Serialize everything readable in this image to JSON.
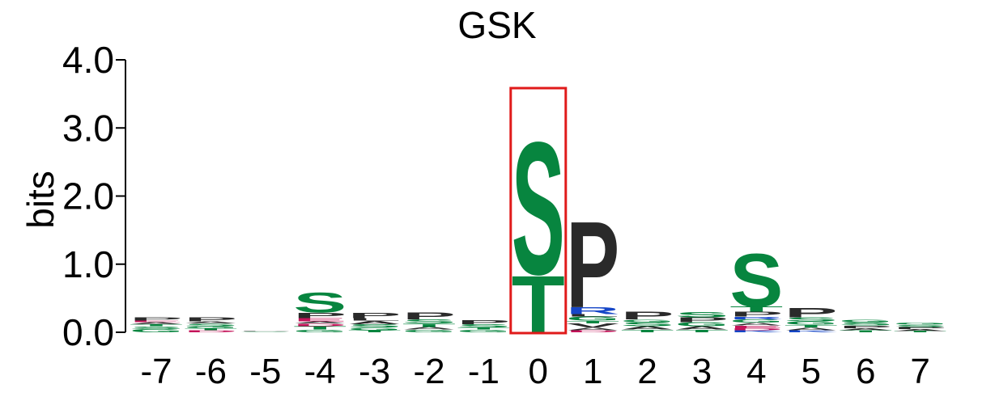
{
  "colors": {
    "S": "#07853f",
    "T": "#07853f",
    "G": "#07853f",
    "P": "#2a2a2a",
    "A": "#2a2a2a",
    "L": "#2a2a2a",
    "V": "#2a2a2a",
    "I": "#2a2a2a",
    "R": "#1546c7",
    "K": "#1546c7",
    "D": "#c4145a",
    "E": "#c4145a",
    "Q": "#7a2a7a",
    "N": "#07853f",
    "highlight": "#e01a1a",
    "axis": "#000000"
  },
  "chart_data": {
    "type": "sequence-logo",
    "title": "GSK",
    "ylabel": "bits",
    "xlabel": "",
    "ylim": [
      0,
      4
    ],
    "y_ticks": [
      "0.0",
      "1.0",
      "2.0",
      "3.0",
      "4.0"
    ],
    "y_tick_values": [
      0,
      1,
      2,
      3,
      4
    ],
    "positions": [
      "-7",
      "-6",
      "-5",
      "-4",
      "-3",
      "-2",
      "-1",
      "0",
      "1",
      "2",
      "3",
      "4",
      "5",
      "6",
      "7"
    ],
    "highlight_position": "0",
    "stacks": [
      {
        "position": "-7",
        "letters": [
          [
            "G",
            0.05
          ],
          [
            "S",
            0.04
          ],
          [
            "T",
            0.03
          ],
          [
            "A",
            0.03
          ],
          [
            "E",
            0.02
          ],
          [
            "P",
            0.05
          ]
        ]
      },
      {
        "position": "-6",
        "letters": [
          [
            "D",
            0.03
          ],
          [
            "T",
            0.03
          ],
          [
            "G",
            0.03
          ],
          [
            "S",
            0.04
          ],
          [
            "A",
            0.03
          ],
          [
            "P",
            0.06
          ]
        ]
      },
      {
        "position": "-5",
        "letters": [
          [
            "S",
            0.01
          ],
          [
            "P",
            0.01
          ]
        ]
      },
      {
        "position": "-4",
        "letters": [
          [
            "G",
            0.04
          ],
          [
            "T",
            0.05
          ],
          [
            "D",
            0.04
          ],
          [
            "A",
            0.03
          ],
          [
            "E",
            0.05
          ],
          [
            "P",
            0.08
          ],
          [
            "S",
            0.3
          ]
        ]
      },
      {
        "position": "-3",
        "letters": [
          [
            "T",
            0.03
          ],
          [
            "G",
            0.04
          ],
          [
            "S",
            0.05
          ],
          [
            "A",
            0.05
          ],
          [
            "L",
            0.04
          ],
          [
            "P",
            0.08
          ]
        ]
      },
      {
        "position": "-2",
        "letters": [
          [
            "G",
            0.04
          ],
          [
            "A",
            0.04
          ],
          [
            "T",
            0.05
          ],
          [
            "S",
            0.06
          ],
          [
            "P",
            0.1
          ]
        ]
      },
      {
        "position": "-1",
        "letters": [
          [
            "G",
            0.04
          ],
          [
            "T",
            0.03
          ],
          [
            "S",
            0.05
          ],
          [
            "P",
            0.06
          ]
        ]
      },
      {
        "position": "0",
        "letters": [
          [
            "T",
            0.86
          ],
          [
            "S",
            2.0
          ]
        ]
      },
      {
        "position": "1",
        "letters": [
          [
            "D",
            0.03
          ],
          [
            "A",
            0.04
          ],
          [
            "V",
            0.06
          ],
          [
            "T",
            0.04
          ],
          [
            "G",
            0.06
          ],
          [
            "L",
            0.04
          ],
          [
            "R",
            0.1
          ],
          [
            "P",
            1.3
          ]
        ]
      },
      {
        "position": "2",
        "letters": [
          [
            "T",
            0.04
          ],
          [
            "A",
            0.05
          ],
          [
            "S",
            0.06
          ],
          [
            "G",
            0.04
          ],
          [
            "P",
            0.12
          ]
        ]
      },
      {
        "position": "3",
        "letters": [
          [
            "T",
            0.04
          ],
          [
            "A",
            0.05
          ],
          [
            "G",
            0.06
          ],
          [
            "P",
            0.07
          ],
          [
            "S",
            0.08
          ]
        ]
      },
      {
        "position": "4",
        "letters": [
          [
            "K",
            0.03
          ],
          [
            "D",
            0.03
          ],
          [
            "E",
            0.04
          ],
          [
            "A",
            0.04
          ],
          [
            "G",
            0.05
          ],
          [
            "R",
            0.04
          ],
          [
            "P",
            0.07
          ],
          [
            "T",
            0.08
          ],
          [
            "S",
            0.8
          ]
        ]
      },
      {
        "position": "5",
        "letters": [
          [
            "K",
            0.03
          ],
          [
            "A",
            0.04
          ],
          [
            "T",
            0.04
          ],
          [
            "G",
            0.05
          ],
          [
            "S",
            0.06
          ],
          [
            "P",
            0.14
          ]
        ]
      },
      {
        "position": "6",
        "letters": [
          [
            "T",
            0.03
          ],
          [
            "A",
            0.03
          ],
          [
            "P",
            0.04
          ],
          [
            "S",
            0.05
          ],
          [
            "G",
            0.04
          ]
        ]
      },
      {
        "position": "7",
        "letters": [
          [
            "T",
            0.02
          ],
          [
            "A",
            0.03
          ],
          [
            "P",
            0.03
          ],
          [
            "S",
            0.03
          ],
          [
            "G",
            0.03
          ]
        ]
      }
    ]
  }
}
